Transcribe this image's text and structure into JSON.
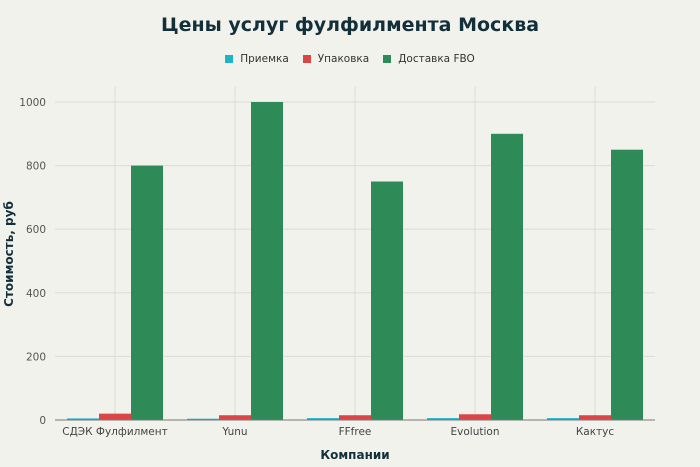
{
  "chart_data": {
    "type": "bar",
    "title": "Цены услуг фулфилмента Москва",
    "xlabel": "Компании",
    "ylabel": "Стоимость, руб",
    "categories": [
      "СДЭК Фулфилмент",
      "Yunu",
      "FFfree",
      "Evolution",
      "Кактус"
    ],
    "series": [
      {
        "name": "Приемка",
        "color": "#1fb3c9",
        "values": [
          5,
          4,
          6,
          6,
          6
        ]
      },
      {
        "name": "Упаковка",
        "color": "#dc4545",
        "values": [
          20,
          15,
          15,
          18,
          15
        ]
      },
      {
        "name": "Доставка FBO",
        "color": "#2e8b57",
        "values": [
          800,
          1000,
          750,
          900,
          850
        ]
      }
    ],
    "ylim": [
      0,
      1000
    ],
    "yticks": [
      0,
      200,
      400,
      600,
      800,
      1000
    ],
    "grid": true,
    "legend": "top-center"
  }
}
